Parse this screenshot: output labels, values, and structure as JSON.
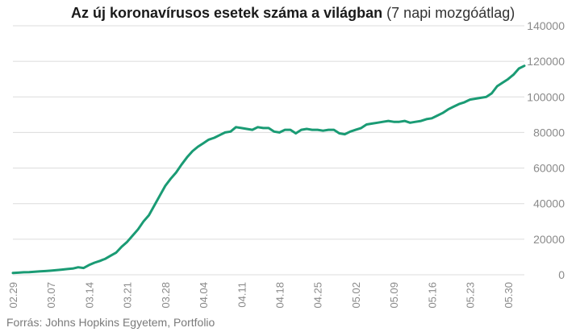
{
  "title": {
    "bold": "Az új koronavírusos esetek száma a világban",
    "normal": "(7 napi mozgóátlag)"
  },
  "source": "Forrás: Johns Hopkins Egyetem, Portfolio",
  "colors": {
    "line": "#1a9b74",
    "grid": "#dcdcdc",
    "text": "#8a8a8a"
  },
  "chart_data": {
    "type": "line",
    "ylim": [
      0,
      140000
    ],
    "yticks": [
      0,
      20000,
      40000,
      60000,
      80000,
      100000,
      120000,
      140000
    ],
    "ytick_labels": [
      "0",
      "20000",
      "40000",
      "60000",
      "80000",
      "100000",
      "120000",
      "140000"
    ],
    "xtick_labels": [
      "02.29",
      "03.07",
      "03.14",
      "03.21",
      "03.28",
      "04.04",
      "04.11",
      "04.18",
      "04.25",
      "05.02",
      "05.09",
      "05.16",
      "05.23",
      "05.30"
    ],
    "grid": true,
    "y_axis_position": "right",
    "x_start": "02.29",
    "series": [
      {
        "values": [
          1000,
          1200,
          1400,
          1500,
          1700,
          1900,
          2100,
          2300,
          2600,
          2900,
          3200,
          3500,
          4200,
          3800,
          5500,
          6800,
          7800,
          9000,
          10800,
          12500,
          15800,
          18500,
          22000,
          25500,
          30000,
          33500,
          39000,
          44500,
          50000,
          54000,
          57500,
          62000,
          66000,
          69500,
          72000,
          74000,
          76000,
          77000,
          78500,
          80000,
          80500,
          83000,
          82500,
          82000,
          81500,
          83000,
          82500,
          82500,
          80500,
          80000,
          81500,
          81500,
          79500,
          81500,
          82000,
          81500,
          81500,
          81000,
          81500,
          81500,
          79500,
          79000,
          80500,
          81500,
          82500,
          84500,
          85000,
          85500,
          86000,
          86500,
          86000,
          86000,
          86500,
          85500,
          86000,
          86500,
          87500,
          88000,
          89500,
          91000,
          93000,
          94500,
          96000,
          97000,
          98500,
          99000,
          99500,
          100000,
          102000,
          106000,
          108000,
          110000,
          112500,
          116000,
          117500
        ]
      }
    ]
  }
}
